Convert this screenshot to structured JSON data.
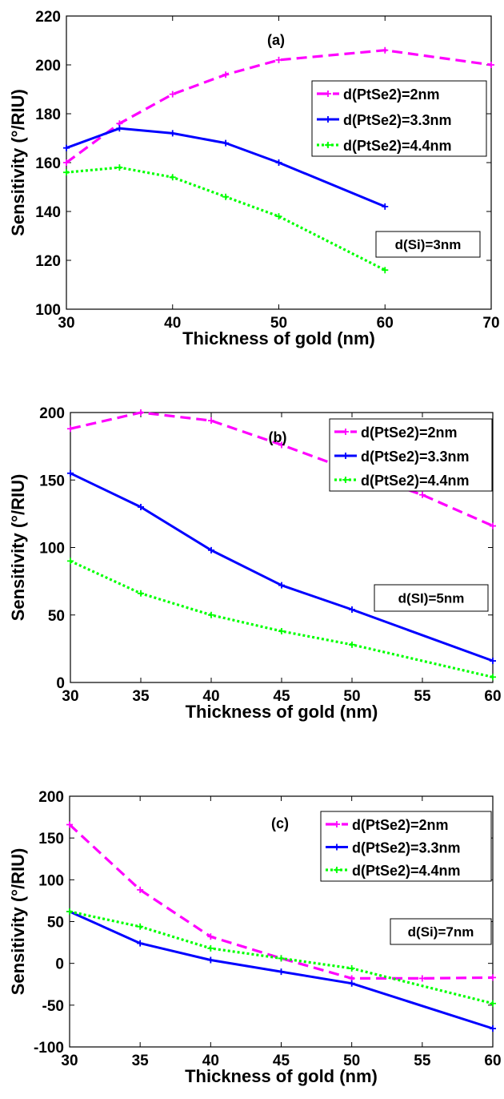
{
  "chart_data": [
    {
      "type": "line",
      "panel_label": "(a)",
      "xlabel": "Thickness of gold (nm)",
      "ylabel": "Sensitivity (°/RIU)",
      "xlim": [
        30,
        70
      ],
      "ylim": [
        100,
        220
      ],
      "xticks": [
        30,
        40,
        50,
        60,
        70
      ],
      "yticks": [
        100,
        120,
        140,
        160,
        180,
        200,
        220
      ],
      "annotation": "d(Si)=3nm",
      "legend_position": "upper-right",
      "grid": false,
      "series": [
        {
          "name": "d(PtSe2)=2nm",
          "color": "#ff00ff",
          "style": "dashed",
          "x": [
            30,
            35,
            40,
            45,
            50,
            60,
            70
          ],
          "y": [
            160,
            176,
            188,
            196,
            202,
            206,
            200
          ]
        },
        {
          "name": "d(PtSe2)=3.3nm",
          "color": "#0000ff",
          "style": "solid",
          "x": [
            30,
            35,
            40,
            45,
            50,
            60
          ],
          "y": [
            166,
            174,
            172,
            168,
            160,
            142
          ]
        },
        {
          "name": "d(PtSe2)=4.4nm",
          "color": "#00ff00",
          "style": "dotted",
          "x": [
            30,
            35,
            40,
            45,
            50,
            60
          ],
          "y": [
            156,
            158,
            154,
            146,
            138,
            116
          ]
        }
      ]
    },
    {
      "type": "line",
      "panel_label": "(b)",
      "xlabel": "Thickness of gold (nm)",
      "ylabel": "Sensitivity (°/RIU)",
      "xlim": [
        30,
        60
      ],
      "ylim": [
        0,
        200
      ],
      "xticks": [
        30,
        35,
        40,
        45,
        50,
        55,
        60
      ],
      "yticks": [
        0,
        50,
        100,
        150,
        200
      ],
      "annotation": "d(SI)=5nm",
      "legend_position": "upper-right",
      "grid": false,
      "series": [
        {
          "name": "d(PtSe2)=2nm",
          "color": "#ff00ff",
          "style": "dashed",
          "x": [
            30,
            35,
            40,
            45,
            50,
            55,
            60
          ],
          "y": [
            188,
            200,
            194,
            176,
            157,
            139,
            116
          ]
        },
        {
          "name": "d(PtSe2)=3.3nm",
          "color": "#0000ff",
          "style": "solid",
          "x": [
            30,
            35,
            40,
            45,
            50,
            60
          ],
          "y": [
            155,
            130,
            98,
            72,
            54,
            16
          ]
        },
        {
          "name": "d(PtSe2)=4.4nm",
          "color": "#00ff00",
          "style": "dotted",
          "x": [
            30,
            35,
            40,
            45,
            50,
            60
          ],
          "y": [
            90,
            66,
            50,
            38,
            28,
            4
          ]
        }
      ]
    },
    {
      "type": "line",
      "panel_label": "(c)",
      "xlabel": "Thickness of gold (nm)",
      "ylabel": "Sensitivity  (°/RIU)",
      "xlim": [
        30,
        60
      ],
      "ylim": [
        -100,
        200
      ],
      "xticks": [
        30,
        35,
        40,
        45,
        50,
        55,
        60
      ],
      "yticks": [
        -100,
        -50,
        0,
        50,
        100,
        150,
        200
      ],
      "annotation": "d(Si)=7nm",
      "legend_position": "upper-right",
      "grid": false,
      "series": [
        {
          "name": "d(PtSe2)=2nm",
          "color": "#ff00ff",
          "style": "dashed",
          "x": [
            30,
            35,
            40,
            45,
            50,
            55,
            60
          ],
          "y": [
            166,
            88,
            32,
            6,
            -18,
            -18,
            -17
          ]
        },
        {
          "name": "d(PtSe2)=3.3nm",
          "color": "#0000ff",
          "style": "solid",
          "x": [
            30,
            35,
            40,
            45,
            50,
            60
          ],
          "y": [
            62,
            24,
            4,
            -10,
            -24,
            -78
          ]
        },
        {
          "name": "d(PtSe2)=4.4nm",
          "color": "#00ff00",
          "style": "dotted",
          "x": [
            30,
            35,
            40,
            45,
            50,
            60
          ],
          "y": [
            62,
            44,
            18,
            6,
            -6,
            -48
          ]
        }
      ]
    }
  ]
}
